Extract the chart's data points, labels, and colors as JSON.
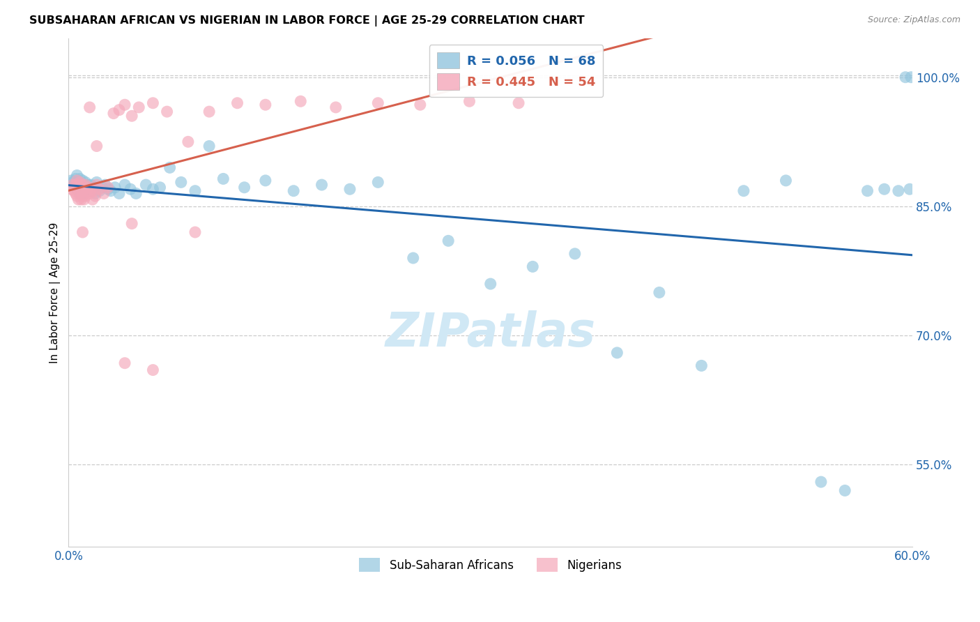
{
  "title": "SUBSAHARAN AFRICAN VS NIGERIAN IN LABOR FORCE | AGE 25-29 CORRELATION CHART",
  "source": "Source: ZipAtlas.com",
  "ylabel": "In Labor Force | Age 25-29",
  "xlim": [
    0.0,
    0.6
  ],
  "ylim": [
    0.455,
    1.045
  ],
  "xticks": [
    0.0,
    0.1,
    0.2,
    0.3,
    0.4,
    0.5,
    0.6
  ],
  "xticklabels": [
    "0.0%",
    "",
    "",
    "",
    "",
    "",
    "60.0%"
  ],
  "yticks": [
    0.55,
    0.7,
    0.85,
    1.0
  ],
  "yticklabels": [
    "55.0%",
    "70.0%",
    "85.0%",
    "100.0%"
  ],
  "blue_color": "#92c5de",
  "pink_color": "#f4a7b9",
  "blue_line_color": "#2166ac",
  "pink_line_color": "#d6604d",
  "legend_blue_label": "R = 0.056   N = 68",
  "legend_pink_label": "R = 0.445   N = 54",
  "legend_sub_label": "Sub-Saharan Africans",
  "legend_nig_label": "Nigerians",
  "watermark_color": "#d0e8f5",
  "blue_scatter_x": [
    0.002,
    0.003,
    0.004,
    0.005,
    0.006,
    0.006,
    0.007,
    0.007,
    0.008,
    0.008,
    0.009,
    0.009,
    0.01,
    0.01,
    0.011,
    0.011,
    0.012,
    0.012,
    0.013,
    0.014,
    0.015,
    0.016,
    0.017,
    0.018,
    0.019,
    0.02,
    0.022,
    0.024,
    0.026,
    0.028,
    0.03,
    0.033,
    0.036,
    0.04,
    0.044,
    0.048,
    0.055,
    0.06,
    0.065,
    0.072,
    0.08,
    0.09,
    0.1,
    0.11,
    0.125,
    0.14,
    0.16,
    0.18,
    0.2,
    0.22,
    0.245,
    0.27,
    0.3,
    0.33,
    0.36,
    0.39,
    0.42,
    0.45,
    0.48,
    0.51,
    0.535,
    0.552,
    0.568,
    0.58,
    0.59,
    0.595,
    0.598,
    0.599
  ],
  "blue_scatter_y": [
    0.88,
    0.878,
    0.875,
    0.882,
    0.87,
    0.886,
    0.872,
    0.878,
    0.865,
    0.882,
    0.875,
    0.868,
    0.88,
    0.872,
    0.875,
    0.865,
    0.878,
    0.87,
    0.872,
    0.875,
    0.868,
    0.875,
    0.87,
    0.872,
    0.865,
    0.878,
    0.868,
    0.872,
    0.875,
    0.87,
    0.868,
    0.872,
    0.865,
    0.875,
    0.87,
    0.865,
    0.875,
    0.87,
    0.872,
    0.895,
    0.878,
    0.868,
    0.92,
    0.882,
    0.872,
    0.88,
    0.868,
    0.875,
    0.87,
    0.878,
    0.79,
    0.81,
    0.76,
    0.78,
    0.795,
    0.68,
    0.75,
    0.665,
    0.868,
    0.88,
    0.53,
    0.52,
    0.868,
    0.87,
    0.868,
    1.0,
    0.87,
    1.0
  ],
  "pink_scatter_x": [
    0.002,
    0.003,
    0.004,
    0.005,
    0.005,
    0.006,
    0.006,
    0.007,
    0.007,
    0.008,
    0.008,
    0.009,
    0.009,
    0.01,
    0.01,
    0.011,
    0.011,
    0.012,
    0.012,
    0.013,
    0.014,
    0.015,
    0.016,
    0.017,
    0.018,
    0.019,
    0.02,
    0.022,
    0.025,
    0.028,
    0.032,
    0.036,
    0.04,
    0.045,
    0.05,
    0.06,
    0.07,
    0.085,
    0.1,
    0.12,
    0.14,
    0.165,
    0.19,
    0.22,
    0.25,
    0.285,
    0.32,
    0.01,
    0.015,
    0.02,
    0.045,
    0.06,
    0.09,
    0.04
  ],
  "pink_scatter_y": [
    0.87,
    0.875,
    0.868,
    0.875,
    0.865,
    0.88,
    0.862,
    0.875,
    0.858,
    0.878,
    0.865,
    0.87,
    0.858,
    0.875,
    0.862,
    0.87,
    0.858,
    0.875,
    0.862,
    0.868,
    0.872,
    0.865,
    0.87,
    0.858,
    0.868,
    0.862,
    0.875,
    0.87,
    0.865,
    0.872,
    0.958,
    0.962,
    0.968,
    0.955,
    0.965,
    0.97,
    0.96,
    0.925,
    0.96,
    0.97,
    0.968,
    0.972,
    0.965,
    0.97,
    0.968,
    0.972,
    0.97,
    0.82,
    0.965,
    0.92,
    0.83,
    0.66,
    0.82,
    0.668
  ]
}
